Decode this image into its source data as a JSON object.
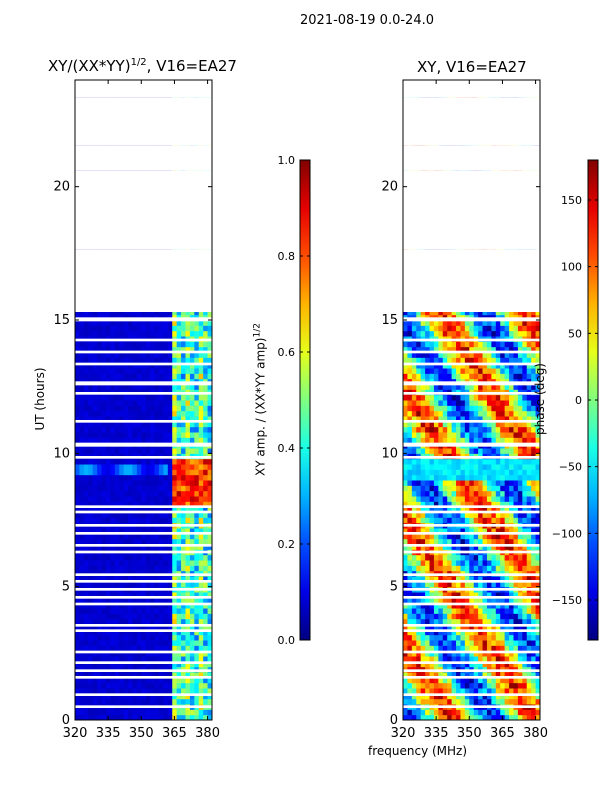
{
  "suptitle": "2021-08-19 0.0-24.0",
  "shared": {
    "ylabel": "UT (hours)",
    "xlabel": "frequency (MHz)"
  },
  "chart_data": [
    {
      "type": "heatmap",
      "title_text": "XY/(XX*YY)",
      "title_superscript": "1/2",
      "title_suffix": ", V16=EA27",
      "xlim": [
        320,
        382
      ],
      "ylim": [
        0,
        24
      ],
      "xticks": [
        320,
        335,
        350,
        365,
        380
      ],
      "yticks": [
        0,
        5,
        10,
        15,
        20
      ],
      "colorbar": {
        "label": "XY amp. / (XX*YY amp)",
        "label_superscript": "1/2",
        "range": [
          0.0,
          1.0
        ],
        "ticks": [
          0.0,
          0.2,
          0.4,
          0.6,
          0.8,
          1.0
        ],
        "tick_labels": [
          "0.0",
          "0.2",
          "0.4",
          "0.6",
          "0.8",
          "1.0"
        ]
      },
      "description_values": {
        "background_level": 0.05,
        "band_365_382_level": 0.35,
        "peak_level_hours": [
          8.0,
          9.8
        ],
        "peak_level": 0.85
      }
    },
    {
      "type": "heatmap",
      "title_text": "XY, V16=EA27",
      "xlim": [
        320,
        382
      ],
      "ylim": [
        0,
        24
      ],
      "xticks": [
        320,
        335,
        350,
        365,
        380
      ],
      "yticks": [
        0,
        5,
        10,
        15,
        20
      ],
      "colorbar": {
        "label": "phase (deg)",
        "range": [
          -180,
          180
        ],
        "ticks": [
          -150,
          -100,
          -50,
          0,
          50,
          100,
          150
        ],
        "tick_labels": [
          "−150",
          "−100",
          "−50",
          "0",
          "50",
          "100",
          "150"
        ]
      }
    }
  ],
  "gaps_hours": [
    [
      23.35,
      24.0
    ],
    [
      21.55,
      23.35
    ],
    [
      21.3,
      21.4
    ],
    [
      20.6,
      21.55
    ],
    [
      19.2,
      20.6
    ],
    [
      18.85,
      19.05
    ],
    [
      18.4,
      18.55
    ],
    [
      17.65,
      19.2
    ],
    [
      15.3,
      17.65
    ],
    [
      14.95,
      15.1
    ],
    [
      14.2,
      14.3
    ],
    [
      13.75,
      13.85
    ],
    [
      13.3,
      13.4
    ],
    [
      12.55,
      12.7
    ],
    [
      12.2,
      12.3
    ],
    [
      11.15,
      11.25
    ],
    [
      10.25,
      10.4
    ],
    [
      9.8,
      9.9
    ],
    [
      7.95,
      8.05
    ],
    [
      7.75,
      7.85
    ],
    [
      7.25,
      7.35
    ],
    [
      6.95,
      7.05
    ],
    [
      6.5,
      6.6
    ],
    [
      6.25,
      6.35
    ],
    [
      5.4,
      5.5
    ],
    [
      5.15,
      5.25
    ],
    [
      4.85,
      4.95
    ],
    [
      4.55,
      4.65
    ],
    [
      4.3,
      4.4
    ],
    [
      3.5,
      3.6
    ],
    [
      3.3,
      3.4
    ],
    [
      2.5,
      2.6
    ],
    [
      2.1,
      2.2
    ],
    [
      1.8,
      1.9
    ],
    [
      1.55,
      1.65
    ],
    [
      0.9,
      1.0
    ],
    [
      0.45,
      0.55
    ]
  ]
}
